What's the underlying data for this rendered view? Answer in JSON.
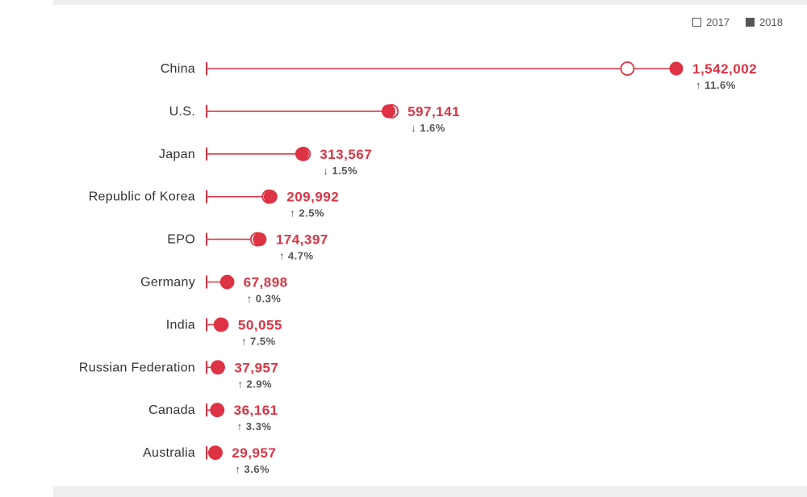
{
  "legend": [
    {
      "label": "2017",
      "style": "open"
    },
    {
      "label": "2018",
      "style": "filled"
    }
  ],
  "colors": {
    "accent": "#dd3344",
    "text": "#333333",
    "muted": "#555555"
  },
  "chart_data": {
    "type": "dot-plot",
    "categories": [
      "China",
      "U.S.",
      "Japan",
      "Republic of Korea",
      "EPO",
      "Germany",
      "India",
      "Russian Federation",
      "Canada",
      "Australia"
    ],
    "series": [
      {
        "name": "2017",
        "values": [
          1381594,
          606956,
          318479,
          204775,
          166585,
          67712,
          46582,
          36883,
          35022,
          28906
        ]
      },
      {
        "name": "2018",
        "values": [
          1542002,
          597141,
          313567,
          209992,
          174397,
          67898,
          50055,
          37957,
          36161,
          29957
        ]
      }
    ],
    "value_labels": [
      "1,542,002",
      "597,141",
      "313,567",
      "209,992",
      "174,397",
      "67,898",
      "50,055",
      "37,957",
      "36,161",
      "29,957"
    ],
    "changes": [
      {
        "dir": "up",
        "text": "11.6%"
      },
      {
        "dir": "down",
        "text": "1.6%"
      },
      {
        "dir": "down",
        "text": "1.5%"
      },
      {
        "dir": "up",
        "text": "2.5%"
      },
      {
        "dir": "up",
        "text": "4.7%"
      },
      {
        "dir": "up",
        "text": "0.3%"
      },
      {
        "dir": "up",
        "text": "7.5%"
      },
      {
        "dir": "up",
        "text": "2.9%"
      },
      {
        "dir": "up",
        "text": "3.3%"
      },
      {
        "dir": "up",
        "text": "3.6%"
      }
    ],
    "xlim": [
      0,
      1600000
    ],
    "grid": false,
    "legend_position": "top-right"
  }
}
